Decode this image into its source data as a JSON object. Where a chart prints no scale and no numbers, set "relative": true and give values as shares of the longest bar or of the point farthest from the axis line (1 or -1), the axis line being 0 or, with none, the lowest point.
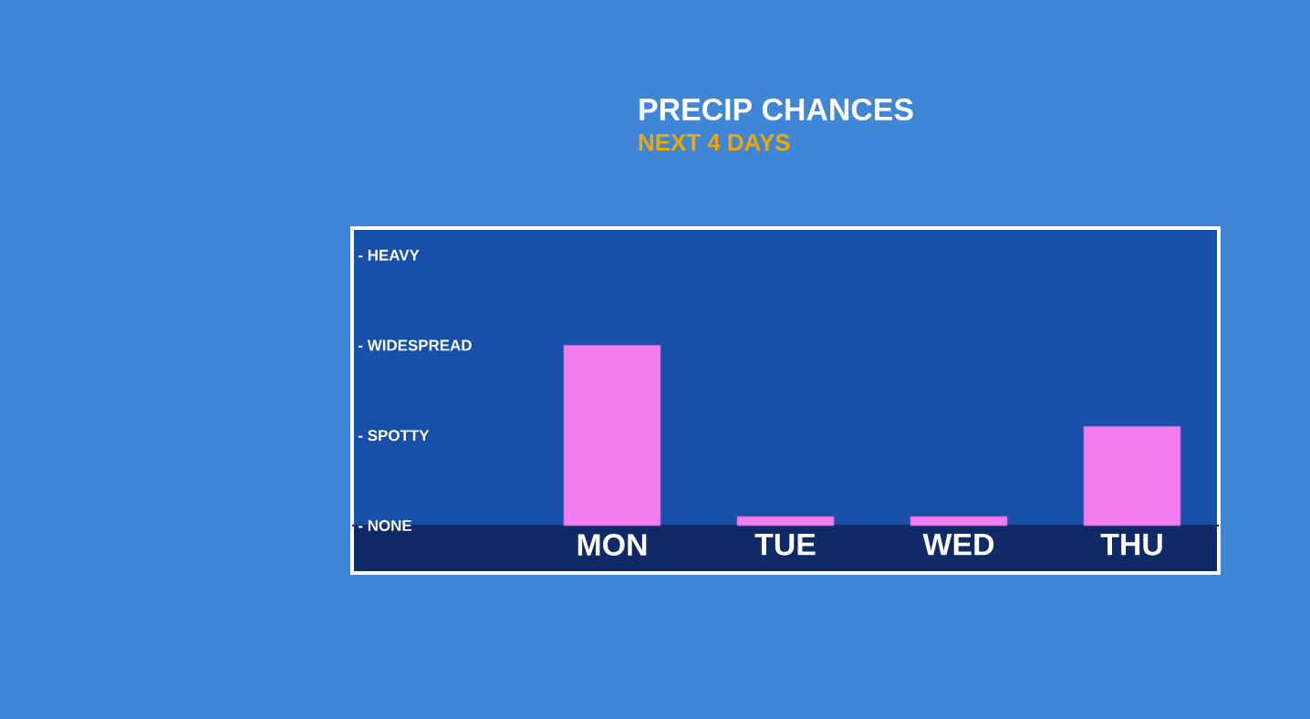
{
  "chart_data": {
    "type": "bar",
    "title": "PRECIP CHANCES",
    "subtitle": "NEXT 4 DAYS",
    "categories": [
      "MON",
      "TUE",
      "WED",
      "THU"
    ],
    "values": [
      1,
      0.05,
      0.05,
      0.55
    ],
    "color": "#f27cf0",
    "relative": true,
    "annotations": [
      "- NONE",
      "- SPOTTY",
      "- WIDESPREAD",
      "- HEAVY"
    ]
  }
}
